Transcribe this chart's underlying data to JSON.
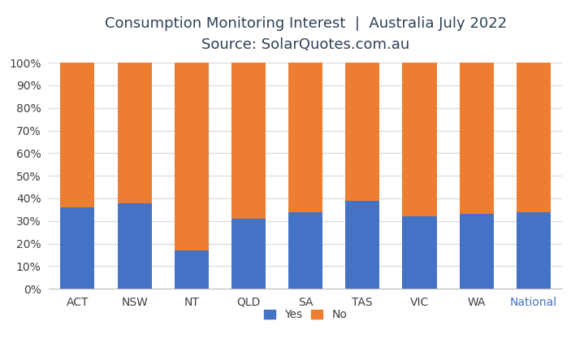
{
  "title_line1": "Consumption Monitoring Interest  |  Australia July 2022",
  "title_line2": "Source: SolarQuotes.com.au",
  "categories": [
    "ACT",
    "NSW",
    "NT",
    "QLD",
    "SA",
    "TAS",
    "VIC",
    "WA",
    "National"
  ],
  "yes_values": [
    36,
    38,
    17,
    31,
    34,
    39,
    32,
    33,
    34
  ],
  "no_values": [
    64,
    62,
    83,
    69,
    66,
    61,
    68,
    67,
    66
  ],
  "yes_color": "#4472C4",
  "no_color": "#ED7D31",
  "background_color": "#FFFFFF",
  "grid_color": "#D9D9D9",
  "title_color": "#2E4057",
  "national_label_color": "#4472C4",
  "bar_width": 0.6,
  "ylim": [
    0,
    100
  ],
  "ytick_labels": [
    "0%",
    "10%",
    "20%",
    "30%",
    "40%",
    "50%",
    "60%",
    "70%",
    "80%",
    "90%",
    "100%"
  ],
  "ytick_values": [
    0,
    10,
    20,
    30,
    40,
    50,
    60,
    70,
    80,
    90,
    100
  ],
  "legend_labels": [
    "Yes",
    "No"
  ],
  "title_fontsize": 13,
  "subtitle_fontsize": 12,
  "tick_fontsize": 10,
  "legend_fontsize": 10
}
